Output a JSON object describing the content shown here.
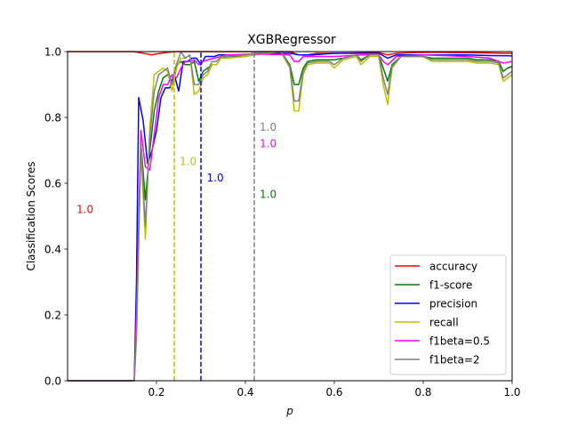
{
  "chart_data": {
    "type": "line",
    "title": "XGBRegressor",
    "xlabel": "p",
    "ylabel": "Classification Scores",
    "xlim": [
      0.0,
      1.0
    ],
    "ylim": [
      0.0,
      1.0
    ],
    "xticks": [
      "0.2",
      "0.4",
      "0.6",
      "0.8",
      "1.0"
    ],
    "yticks": [
      "0.0",
      "0.2",
      "0.4",
      "0.6",
      "0.8",
      "1.0"
    ],
    "grid": false,
    "legend_position": "lower-right",
    "series": [
      {
        "name": "accuracy",
        "color": "#ff0000",
        "points": [
          [
            0.0,
            1.0
          ],
          [
            0.15,
            1.0
          ],
          [
            0.17,
            0.995
          ],
          [
            0.19,
            0.99
          ],
          [
            0.2,
            0.993
          ],
          [
            0.22,
            0.997
          ],
          [
            0.24,
            1.0
          ],
          [
            0.3,
            1.0
          ],
          [
            0.4,
            1.0
          ],
          [
            0.5,
            1.0
          ],
          [
            0.52,
            0.99
          ],
          [
            0.54,
            0.99
          ],
          [
            0.56,
            0.995
          ],
          [
            0.6,
            0.995
          ],
          [
            0.7,
            0.997
          ],
          [
            0.72,
            0.99
          ],
          [
            0.74,
            0.995
          ],
          [
            0.8,
            0.998
          ],
          [
            0.9,
            0.997
          ],
          [
            0.95,
            0.996
          ],
          [
            0.98,
            0.995
          ],
          [
            1.0,
            0.995
          ]
        ]
      },
      {
        "name": "f1-score",
        "color": "#008000",
        "points": [
          [
            0.0,
            0.0
          ],
          [
            0.15,
            0.0
          ],
          [
            0.155,
            0.15
          ],
          [
            0.165,
            0.72
          ],
          [
            0.175,
            0.55
          ],
          [
            0.185,
            0.7
          ],
          [
            0.195,
            0.82
          ],
          [
            0.205,
            0.88
          ],
          [
            0.215,
            0.92
          ],
          [
            0.225,
            0.93
          ],
          [
            0.235,
            0.91
          ],
          [
            0.245,
            0.96
          ],
          [
            0.255,
            0.97
          ],
          [
            0.265,
            0.96
          ],
          [
            0.275,
            0.96
          ],
          [
            0.285,
            0.97
          ],
          [
            0.295,
            0.91
          ],
          [
            0.305,
            0.94
          ],
          [
            0.315,
            0.95
          ],
          [
            0.325,
            0.96
          ],
          [
            0.335,
            0.96
          ],
          [
            0.345,
            0.98
          ],
          [
            0.36,
            0.985
          ],
          [
            0.4,
            0.985
          ],
          [
            0.42,
            0.99
          ],
          [
            0.48,
            1.0
          ],
          [
            0.5,
            0.96
          ],
          [
            0.51,
            0.9
          ],
          [
            0.52,
            0.9
          ],
          [
            0.53,
            0.95
          ],
          [
            0.54,
            0.97
          ],
          [
            0.56,
            0.975
          ],
          [
            0.6,
            0.975
          ],
          [
            0.62,
            0.98
          ],
          [
            0.65,
            0.99
          ],
          [
            0.66,
            0.975
          ],
          [
            0.68,
            0.99
          ],
          [
            0.7,
            0.99
          ],
          [
            0.71,
            0.95
          ],
          [
            0.72,
            0.91
          ],
          [
            0.73,
            0.96
          ],
          [
            0.75,
            0.985
          ],
          [
            0.8,
            0.985
          ],
          [
            0.82,
            0.98
          ],
          [
            0.9,
            0.98
          ],
          [
            0.92,
            0.975
          ],
          [
            0.95,
            0.975
          ],
          [
            0.97,
            0.97
          ],
          [
            0.98,
            0.94
          ],
          [
            0.99,
            0.95
          ],
          [
            1.0,
            0.955
          ]
        ]
      },
      {
        "name": "precision",
        "color": "#0000ff",
        "points": [
          [
            0.0,
            0.0
          ],
          [
            0.15,
            0.0
          ],
          [
            0.155,
            0.3
          ],
          [
            0.16,
            0.86
          ],
          [
            0.17,
            0.79
          ],
          [
            0.18,
            0.66
          ],
          [
            0.19,
            0.7
          ],
          [
            0.2,
            0.76
          ],
          [
            0.21,
            0.86
          ],
          [
            0.22,
            0.89
          ],
          [
            0.23,
            0.89
          ],
          [
            0.24,
            0.93
          ],
          [
            0.25,
            0.88
          ],
          [
            0.26,
            0.97
          ],
          [
            0.27,
            0.97
          ],
          [
            0.28,
            0.98
          ],
          [
            0.29,
            0.98
          ],
          [
            0.3,
            0.96
          ],
          [
            0.31,
            0.985
          ],
          [
            0.33,
            0.985
          ],
          [
            0.34,
            0.99
          ],
          [
            0.4,
            0.99
          ],
          [
            0.42,
            0.995
          ],
          [
            0.5,
            0.995
          ],
          [
            0.52,
            0.99
          ],
          [
            0.55,
            0.99
          ],
          [
            0.6,
            0.995
          ],
          [
            0.7,
            0.995
          ],
          [
            0.72,
            0.98
          ],
          [
            0.74,
            0.99
          ],
          [
            0.8,
            0.99
          ],
          [
            0.9,
            0.99
          ],
          [
            0.95,
            0.988
          ],
          [
            1.0,
            0.987
          ]
        ]
      },
      {
        "name": "recall",
        "color": "#bfbf00",
        "points": [
          [
            0.0,
            0.0
          ],
          [
            0.15,
            0.0
          ],
          [
            0.155,
            0.12
          ],
          [
            0.165,
            0.7
          ],
          [
            0.175,
            0.43
          ],
          [
            0.185,
            0.77
          ],
          [
            0.195,
            0.93
          ],
          [
            0.205,
            0.94
          ],
          [
            0.215,
            0.95
          ],
          [
            0.225,
            0.94
          ],
          [
            0.235,
            0.88
          ],
          [
            0.245,
            0.95
          ],
          [
            0.255,
            0.98
          ],
          [
            0.265,
            0.98
          ],
          [
            0.275,
            0.99
          ],
          [
            0.285,
            0.87
          ],
          [
            0.295,
            0.88
          ],
          [
            0.305,
            0.92
          ],
          [
            0.315,
            0.93
          ],
          [
            0.325,
            0.96
          ],
          [
            0.335,
            0.96
          ],
          [
            0.345,
            0.98
          ],
          [
            0.36,
            0.98
          ],
          [
            0.4,
            0.985
          ],
          [
            0.42,
            0.99
          ],
          [
            0.48,
            1.0
          ],
          [
            0.5,
            0.95
          ],
          [
            0.51,
            0.82
          ],
          [
            0.52,
            0.82
          ],
          [
            0.53,
            0.93
          ],
          [
            0.54,
            0.96
          ],
          [
            0.56,
            0.965
          ],
          [
            0.59,
            0.965
          ],
          [
            0.6,
            0.95
          ],
          [
            0.62,
            0.975
          ],
          [
            0.65,
            0.985
          ],
          [
            0.66,
            0.96
          ],
          [
            0.68,
            0.985
          ],
          [
            0.7,
            0.985
          ],
          [
            0.71,
            0.9
          ],
          [
            0.72,
            0.84
          ],
          [
            0.73,
            0.95
          ],
          [
            0.75,
            0.985
          ],
          [
            0.8,
            0.985
          ],
          [
            0.82,
            0.97
          ],
          [
            0.9,
            0.97
          ],
          [
            0.92,
            0.965
          ],
          [
            0.95,
            0.965
          ],
          [
            0.97,
            0.96
          ],
          [
            0.98,
            0.91
          ],
          [
            0.99,
            0.92
          ],
          [
            1.0,
            0.93
          ]
        ]
      },
      {
        "name": "f1beta=0.5",
        "color": "#ff00ff",
        "points": [
          [
            0.0,
            0.0
          ],
          [
            0.15,
            0.0
          ],
          [
            0.155,
            0.2
          ],
          [
            0.165,
            0.76
          ],
          [
            0.175,
            0.65
          ],
          [
            0.185,
            0.64
          ],
          [
            0.195,
            0.75
          ],
          [
            0.205,
            0.86
          ],
          [
            0.215,
            0.9
          ],
          [
            0.225,
            0.9
          ],
          [
            0.235,
            0.93
          ],
          [
            0.245,
            0.92
          ],
          [
            0.255,
            0.95
          ],
          [
            0.265,
            0.97
          ],
          [
            0.275,
            0.97
          ],
          [
            0.285,
            0.975
          ],
          [
            0.295,
            0.96
          ],
          [
            0.305,
            0.97
          ],
          [
            0.315,
            0.975
          ],
          [
            0.33,
            0.98
          ],
          [
            0.36,
            0.99
          ],
          [
            0.42,
            0.993
          ],
          [
            0.5,
            0.99
          ],
          [
            0.51,
            0.97
          ],
          [
            0.52,
            0.97
          ],
          [
            0.53,
            0.985
          ],
          [
            0.56,
            0.985
          ],
          [
            0.6,
            0.985
          ],
          [
            0.66,
            0.99
          ],
          [
            0.7,
            0.99
          ],
          [
            0.71,
            0.97
          ],
          [
            0.72,
            0.96
          ],
          [
            0.74,
            0.985
          ],
          [
            0.8,
            0.99
          ],
          [
            0.9,
            0.985
          ],
          [
            0.95,
            0.98
          ],
          [
            0.98,
            0.965
          ],
          [
            1.0,
            0.97
          ]
        ]
      },
      {
        "name": "f1beta=2",
        "color": "#808080",
        "points": [
          [
            0.0,
            0.0
          ],
          [
            0.15,
            0.0
          ],
          [
            0.155,
            0.15
          ],
          [
            0.165,
            0.72
          ],
          [
            0.175,
            0.47
          ],
          [
            0.185,
            0.74
          ],
          [
            0.195,
            0.88
          ],
          [
            0.205,
            0.93
          ],
          [
            0.215,
            0.94
          ],
          [
            0.225,
            0.95
          ],
          [
            0.235,
            0.9
          ],
          [
            0.245,
            0.96
          ],
          [
            0.255,
            1.0
          ],
          [
            0.265,
            0.98
          ],
          [
            0.275,
            0.99
          ],
          [
            0.285,
            0.9
          ],
          [
            0.295,
            0.9
          ],
          [
            0.305,
            0.93
          ],
          [
            0.315,
            0.94
          ],
          [
            0.325,
            0.97
          ],
          [
            0.335,
            0.97
          ],
          [
            0.345,
            0.985
          ],
          [
            0.36,
            0.985
          ],
          [
            0.4,
            0.99
          ],
          [
            0.42,
            0.995
          ],
          [
            0.48,
            1.0
          ],
          [
            0.5,
            0.955
          ],
          [
            0.51,
            0.85
          ],
          [
            0.52,
            0.85
          ],
          [
            0.53,
            0.94
          ],
          [
            0.54,
            0.965
          ],
          [
            0.56,
            0.97
          ],
          [
            0.59,
            0.97
          ],
          [
            0.6,
            0.96
          ],
          [
            0.62,
            0.98
          ],
          [
            0.65,
            0.99
          ],
          [
            0.66,
            0.97
          ],
          [
            0.68,
            0.99
          ],
          [
            0.7,
            0.99
          ],
          [
            0.71,
            0.92
          ],
          [
            0.72,
            0.87
          ],
          [
            0.73,
            0.955
          ],
          [
            0.75,
            0.985
          ],
          [
            0.8,
            0.985
          ],
          [
            0.82,
            0.975
          ],
          [
            0.9,
            0.975
          ],
          [
            0.92,
            0.97
          ],
          [
            0.95,
            0.97
          ],
          [
            0.97,
            0.965
          ],
          [
            0.98,
            0.92
          ],
          [
            0.99,
            0.93
          ],
          [
            1.0,
            0.94
          ]
        ]
      }
    ],
    "vlines": [
      {
        "x": 0.24,
        "color": "#bfbf00",
        "style": "dashed"
      },
      {
        "x": 0.3,
        "color": "#0000ff",
        "style": "dashed"
      },
      {
        "x": 0.42,
        "color": "#808080",
        "style": "dashed"
      }
    ],
    "annotations": [
      {
        "text": "1.0",
        "x": 0.02,
        "y": 0.51,
        "color": "#ff0000"
      },
      {
        "text": "1.0",
        "x": 0.252,
        "y": 0.655,
        "color": "#bfbf00"
      },
      {
        "text": "1.0",
        "x": 0.313,
        "y": 0.605,
        "color": "#0000ff"
      },
      {
        "text": "1.0",
        "x": 0.432,
        "y": 0.76,
        "color": "#808080"
      },
      {
        "text": "1.0",
        "x": 0.432,
        "y": 0.71,
        "color": "#ff00ff"
      },
      {
        "text": "1.0",
        "x": 0.432,
        "y": 0.555,
        "color": "#008000"
      }
    ]
  }
}
